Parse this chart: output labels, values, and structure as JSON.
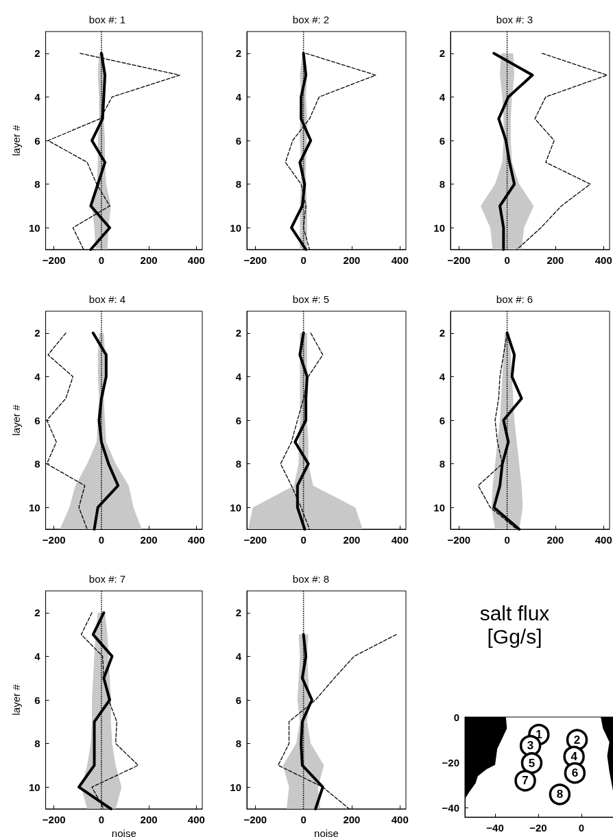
{
  "chart_data": [
    {
      "type": "line",
      "orientation": "horizontal",
      "title": "box #: 1",
      "ylabel": "layer #",
      "xlim": [
        -235,
        425
      ],
      "ylim": [
        11,
        1
      ],
      "xticks": [
        -200,
        0,
        200,
        400
      ],
      "yticks": [
        2,
        4,
        6,
        8,
        10
      ],
      "series": [
        {
          "color": "#000000",
          "line_style": "dotted",
          "x": [
            1,
            2,
            3,
            4,
            5,
            6,
            7,
            8,
            9,
            10,
            11
          ],
          "values": [
            0,
            0,
            0,
            0,
            0,
            0,
            0,
            0,
            0,
            0,
            0
          ],
          "lower": [
            null,
            -10,
            -15,
            -10,
            -10,
            -15,
            -15,
            -20,
            -40,
            -30,
            -25
          ],
          "upper": [
            null,
            10,
            15,
            10,
            10,
            15,
            15,
            20,
            40,
            30,
            25
          ]
        },
        {
          "color": "#000000",
          "line_style": "solid",
          "x": [
            2,
            3,
            4,
            5,
            6,
            7,
            8,
            9,
            10,
            11
          ],
          "values": [
            0,
            15,
            10,
            5,
            -40,
            15,
            -15,
            -45,
            35,
            -45
          ]
        },
        {
          "color": "#000000",
          "line_style": "dashed",
          "x": [
            2,
            3,
            4,
            5,
            6,
            7,
            8,
            9,
            10,
            11
          ],
          "values": [
            -90,
            330,
            45,
            -5,
            -225,
            -60,
            -20,
            35,
            -120,
            -75
          ]
        }
      ]
    },
    {
      "type": "line",
      "orientation": "horizontal",
      "title": "box #: 2",
      "xlim": [
        -235,
        425
      ],
      "ylim": [
        11,
        1
      ],
      "xticks": [
        -200,
        0,
        200,
        400
      ],
      "yticks": [
        2,
        4,
        6,
        8,
        10
      ],
      "series": [
        {
          "color": "#000000",
          "line_style": "dotted",
          "x": [
            1,
            2,
            3,
            4,
            5,
            6,
            7,
            8,
            9,
            10,
            11
          ],
          "values": [
            0,
            0,
            0,
            0,
            0,
            0,
            0,
            0,
            0,
            0,
            0
          ],
          "lower": [
            null,
            -5,
            -15,
            -10,
            -15,
            -15,
            -10,
            -10,
            -15,
            -15,
            -15
          ],
          "upper": [
            null,
            5,
            15,
            10,
            15,
            15,
            10,
            10,
            15,
            15,
            15
          ]
        },
        {
          "color": "#000000",
          "line_style": "solid",
          "x": [
            2,
            3,
            4,
            5,
            6,
            7,
            8,
            9,
            10,
            11
          ],
          "values": [
            0,
            10,
            -10,
            -10,
            30,
            -15,
            5,
            -5,
            -50,
            10
          ]
        },
        {
          "color": "#000000",
          "line_style": "dashed",
          "x": [
            2,
            3,
            4,
            5,
            6,
            7,
            8,
            9,
            10,
            11
          ],
          "values": [
            10,
            300,
            65,
            25,
            -45,
            -75,
            -10,
            10,
            0,
            25
          ]
        }
      ]
    },
    {
      "type": "line",
      "orientation": "horizontal",
      "title": "box #: 3",
      "xlim": [
        -235,
        425
      ],
      "ylim": [
        11,
        1
      ],
      "xticks": [
        -200,
        0,
        200,
        400
      ],
      "yticks": [
        2,
        4,
        6,
        8,
        10
      ],
      "series": [
        {
          "color": "#000000",
          "line_style": "dotted",
          "x": [
            1,
            2,
            3,
            4,
            5,
            6,
            7,
            8,
            9,
            10,
            11
          ],
          "values": [
            0,
            0,
            0,
            0,
            0,
            0,
            0,
            0,
            0,
            0,
            0
          ],
          "lower": [
            null,
            -25,
            -30,
            -20,
            -15,
            -15,
            -20,
            -50,
            -110,
            -70,
            -60
          ],
          "upper": [
            null,
            25,
            30,
            20,
            15,
            15,
            20,
            50,
            110,
            70,
            60
          ]
        },
        {
          "color": "#000000",
          "line_style": "solid",
          "x": [
            2,
            3,
            4,
            5,
            6,
            7,
            8,
            9,
            10,
            11
          ],
          "values": [
            -55,
            105,
            5,
            -35,
            -5,
            10,
            30,
            -30,
            -15,
            -15
          ]
        },
        {
          "color": "#000000",
          "line_style": "dashed",
          "x": [
            2,
            3,
            4,
            5,
            6,
            7,
            8,
            9,
            10,
            11
          ],
          "values": [
            145,
            415,
            160,
            115,
            195,
            160,
            345,
            225,
            140,
            40
          ]
        }
      ]
    },
    {
      "type": "line",
      "orientation": "horizontal",
      "title": "box #: 4",
      "ylabel": "layer #",
      "xlim": [
        -235,
        425
      ],
      "ylim": [
        11,
        1
      ],
      "xticks": [
        -200,
        0,
        200,
        400
      ],
      "yticks": [
        2,
        4,
        6,
        8,
        10
      ],
      "series": [
        {
          "color": "#000000",
          "line_style": "dotted",
          "x": [
            1,
            2,
            3,
            4,
            5,
            6,
            7,
            8,
            9,
            10,
            11
          ],
          "values": [
            0,
            0,
            0,
            0,
            0,
            0,
            0,
            0,
            0,
            0,
            0
          ],
          "lower": [
            null,
            -10,
            -15,
            -15,
            -10,
            -15,
            -20,
            -60,
            -110,
            -135,
            -175
          ],
          "upper": [
            null,
            10,
            15,
            15,
            10,
            15,
            20,
            60,
            115,
            135,
            170
          ]
        },
        {
          "color": "#000000",
          "line_style": "solid",
          "x": [
            2,
            3,
            4,
            5,
            6,
            7,
            8,
            9,
            10,
            11
          ],
          "values": [
            -35,
            20,
            20,
            0,
            -10,
            0,
            30,
            70,
            -15,
            -30
          ]
        },
        {
          "color": "#000000",
          "line_style": "dashed",
          "x": [
            2,
            3,
            4,
            5,
            6,
            7,
            8,
            9,
            10,
            11
          ],
          "values": [
            -150,
            -225,
            -120,
            -150,
            -230,
            -190,
            -230,
            -70,
            -95,
            -60
          ]
        }
      ]
    },
    {
      "type": "line",
      "orientation": "horizontal",
      "title": "box #: 5",
      "xlim": [
        -235,
        425
      ],
      "ylim": [
        11,
        1
      ],
      "xticks": [
        -200,
        0,
        200,
        400
      ],
      "yticks": [
        2,
        4,
        6,
        8,
        10
      ],
      "series": [
        {
          "color": "#000000",
          "line_style": "dotted",
          "x": [
            1,
            2,
            3,
            4,
            5,
            6,
            7,
            8,
            9,
            10,
            11
          ],
          "values": [
            0,
            0,
            0,
            0,
            0,
            0,
            0,
            0,
            0,
            0,
            0
          ],
          "lower": [
            null,
            -15,
            -15,
            -15,
            -15,
            -15,
            -20,
            -20,
            -40,
            -210,
            -230
          ],
          "upper": [
            null,
            15,
            15,
            15,
            15,
            15,
            20,
            20,
            40,
            215,
            245
          ]
        },
        {
          "color": "#000000",
          "line_style": "solid",
          "x": [
            2,
            3,
            4,
            5,
            6,
            7,
            8,
            9,
            10,
            11
          ],
          "values": [
            0,
            -15,
            15,
            10,
            10,
            -35,
            20,
            -25,
            -25,
            5
          ]
        },
        {
          "color": "#000000",
          "line_style": "dashed",
          "x": [
            2,
            3,
            4,
            5,
            6,
            7,
            8,
            9,
            10,
            11
          ],
          "values": [
            30,
            80,
            20,
            0,
            -25,
            -50,
            -95,
            -50,
            -10,
            25
          ]
        }
      ]
    },
    {
      "type": "line",
      "orientation": "horizontal",
      "title": "box #: 6",
      "xlim": [
        -235,
        425
      ],
      "ylim": [
        11,
        1
      ],
      "xticks": [
        -200,
        0,
        200,
        400
      ],
      "yticks": [
        2,
        4,
        6,
        8,
        10
      ],
      "series": [
        {
          "color": "#000000",
          "line_style": "dotted",
          "x": [
            1,
            2,
            3,
            4,
            5,
            6,
            7,
            8,
            9,
            10,
            11
          ],
          "values": [
            0,
            0,
            0,
            0,
            0,
            0,
            0,
            0,
            0,
            0,
            0
          ],
          "lower": [
            null,
            -10,
            -15,
            -20,
            -25,
            -30,
            -40,
            -50,
            -60,
            -65,
            -50
          ],
          "upper": [
            null,
            10,
            15,
            20,
            25,
            30,
            40,
            50,
            60,
            65,
            50
          ]
        },
        {
          "color": "#000000",
          "line_style": "solid",
          "x": [
            2,
            3,
            4,
            5,
            6,
            7,
            8,
            9,
            10,
            11
          ],
          "values": [
            0,
            30,
            20,
            60,
            -15,
            5,
            -20,
            -30,
            -55,
            50
          ]
        },
        {
          "color": "#000000",
          "line_style": "dashed",
          "x": [
            2,
            3,
            4,
            5,
            6,
            7,
            8,
            9,
            10,
            11
          ],
          "values": [
            0,
            -15,
            -30,
            -35,
            -50,
            -40,
            -20,
            -120,
            -70,
            40
          ]
        }
      ]
    },
    {
      "type": "line",
      "orientation": "horizontal",
      "title": "box #: 7",
      "ylabel": "layer #",
      "xlabel": "noise",
      "xlim": [
        -235,
        425
      ],
      "ylim": [
        11,
        1
      ],
      "xticks": [
        -200,
        0,
        200,
        400
      ],
      "yticks": [
        2,
        4,
        6,
        8,
        10
      ],
      "series": [
        {
          "color": "#000000",
          "line_style": "dotted",
          "x": [
            1,
            2,
            3,
            4,
            5,
            6,
            7,
            8,
            9,
            10,
            11
          ],
          "values": [
            0,
            0,
            0,
            0,
            0,
            0,
            0,
            0,
            0,
            0,
            0
          ],
          "lower": [
            null,
            -15,
            -25,
            -30,
            -35,
            -40,
            -40,
            -45,
            -60,
            -85,
            -60
          ],
          "upper": [
            null,
            15,
            25,
            30,
            35,
            40,
            40,
            45,
            60,
            85,
            60
          ]
        },
        {
          "color": "#000000",
          "line_style": "solid",
          "x": [
            2,
            3,
            4,
            5,
            6,
            7,
            8,
            9,
            10,
            11
          ],
          "values": [
            10,
            -35,
            45,
            10,
            35,
            -30,
            -30,
            -30,
            -95,
            40
          ]
        },
        {
          "color": "#000000",
          "line_style": "dashed",
          "x": [
            2,
            3,
            4,
            5,
            6,
            7,
            8,
            9,
            10,
            11
          ],
          "values": [
            -40,
            -85,
            5,
            10,
            30,
            65,
            60,
            155,
            -40,
            10
          ]
        }
      ]
    },
    {
      "type": "line",
      "orientation": "horizontal",
      "title": "box #: 8",
      "xlabel": "noise",
      "xlim": [
        -235,
        425
      ],
      "ylim": [
        11,
        1
      ],
      "xticks": [
        -200,
        0,
        200,
        400
      ],
      "yticks": [
        2,
        4,
        6,
        8,
        10
      ],
      "series": [
        {
          "color": "#000000",
          "line_style": "dotted",
          "x": [
            1,
            2,
            3,
            4,
            5,
            6,
            7,
            8,
            9,
            10,
            11
          ],
          "values": [
            0,
            0,
            0,
            0,
            0,
            0,
            0,
            0,
            0,
            0,
            0
          ],
          "lower": [
            null,
            null,
            -20,
            -15,
            -20,
            -25,
            -15,
            -30,
            -85,
            -60,
            -70
          ],
          "upper": [
            null,
            null,
            20,
            15,
            20,
            25,
            15,
            30,
            85,
            60,
            70
          ]
        },
        {
          "color": "#000000",
          "line_style": "solid",
          "x": [
            3,
            4,
            5,
            6,
            7,
            8,
            9,
            10,
            11
          ],
          "values": [
            0,
            10,
            -5,
            35,
            -5,
            -10,
            -5,
            80,
            50
          ]
        },
        {
          "color": "#000000",
          "line_style": "dashed",
          "x": [
            3,
            4,
            5,
            6,
            7,
            8,
            9,
            10,
            11
          ],
          "values": [
            385,
            210,
            128,
            50,
            -60,
            -60,
            -105,
            80,
            190
          ]
        }
      ]
    },
    {
      "type": "scatter",
      "title": "salt flux",
      "subtitle": "[Gg/s]",
      "marker": "circle",
      "xlim": [
        -54,
        15
      ],
      "ylim": [
        -44,
        0
      ],
      "xticks": [
        -40,
        -20,
        0
      ],
      "yticks": [
        0,
        -20,
        -40
      ],
      "series": [
        {
          "color": "#000000",
          "x": [
            -19.7,
            -2,
            -23.6,
            -3.4,
            -23,
            -3,
            -26,
            -10
          ],
          "values": [
            -7.7,
            -10,
            -12.6,
            -17.4,
            -20.2,
            -24.6,
            -28,
            -34
          ]
        }
      ],
      "annotations": [
        {
          "text": "1",
          "x": -19.7,
          "y": -7.7
        },
        {
          "text": "2",
          "x": -2,
          "y": -10
        },
        {
          "text": "3",
          "x": -23.6,
          "y": -12.6
        },
        {
          "text": "4",
          "x": -3.4,
          "y": -17.4
        },
        {
          "text": "5",
          "x": -23,
          "y": -20.2
        },
        {
          "text": "6",
          "x": -3,
          "y": -24.6
        },
        {
          "text": "7",
          "x": -26,
          "y": -28
        },
        {
          "text": "8",
          "x": -10,
          "y": -34
        }
      ]
    }
  ]
}
